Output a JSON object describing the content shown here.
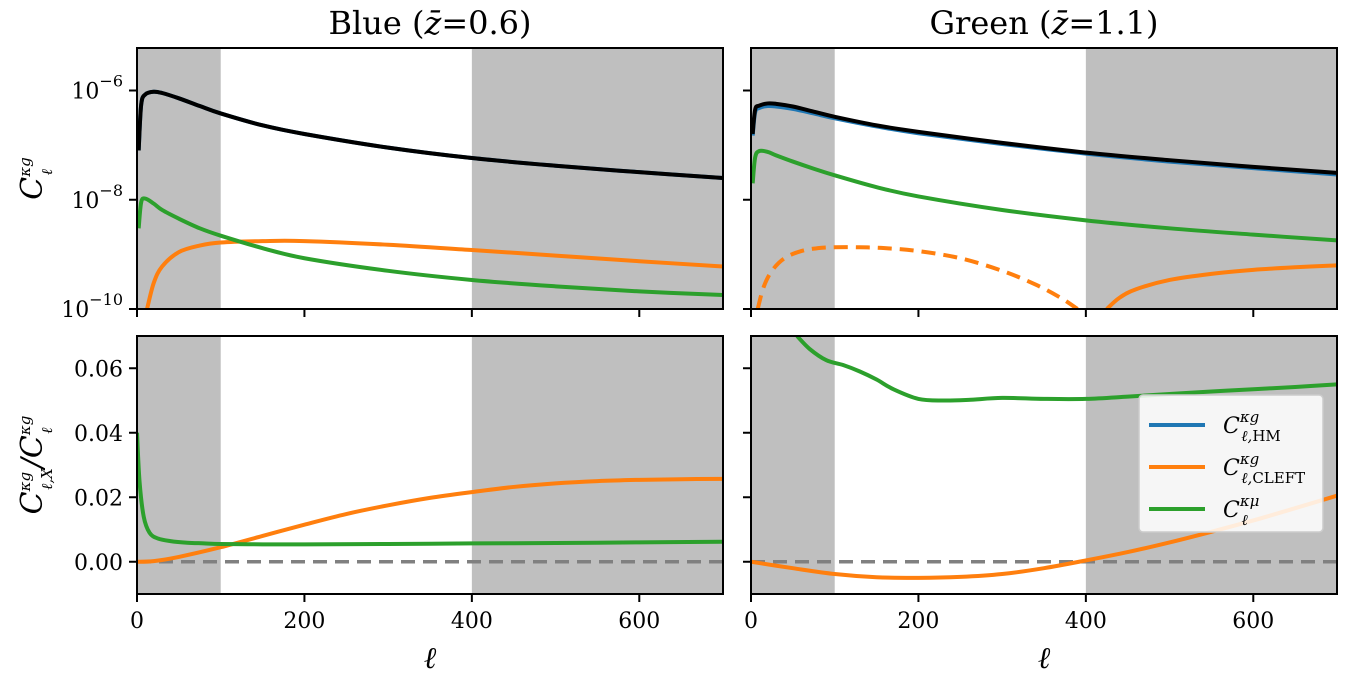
{
  "chart_data": [
    {
      "panel": "top-left",
      "type": "line",
      "title": "Blue (z̄=0.6)",
      "title_text": "Blue (",
      "title_math": "z̄",
      "title_eq": "=0.6)",
      "yscale": "log",
      "xlim": [
        0,
        700
      ],
      "ylim": [
        1e-10,
        6e-06
      ],
      "ylabel": "C_ℓ^κg",
      "yticks": [
        "10^-10",
        "10^-8",
        "10^-6"
      ],
      "shaded_x_ranges": [
        [
          0,
          100
        ],
        [
          400,
          700
        ]
      ],
      "series": [
        {
          "color": "#1f77b4",
          "x": [
            2,
            5,
            10,
            20,
            30,
            50,
            75,
            100,
            150,
            200,
            300,
            400,
            500,
            600,
            700
          ],
          "y": [
            8e-08,
            5.5e-07,
            8.5e-07,
            9.5e-07,
            9e-07,
            7.2e-07,
            5.2e-07,
            3.8e-07,
            2.3e-07,
            1.6e-07,
            9e-08,
            5.8e-08,
            4.2e-08,
            3.2e-08,
            2.5e-08
          ]
        },
        {
          "color": "#000000",
          "x": [
            2,
            5,
            10,
            20,
            30,
            50,
            75,
            100,
            150,
            200,
            300,
            400,
            500,
            600,
            700
          ],
          "y": [
            8e-08,
            5.5e-07,
            8.5e-07,
            9.5e-07,
            9e-07,
            7.2e-07,
            5.2e-07,
            3.8e-07,
            2.3e-07,
            1.6e-07,
            9e-08,
            5.8e-08,
            4.2e-08,
            3.2e-08,
            2.5e-08
          ]
        },
        {
          "color": "#ff7f0e",
          "dash": false,
          "x": [
            12,
            20,
            30,
            50,
            75,
            100,
            150,
            200,
            300,
            400,
            500,
            600,
            700
          ],
          "y": [
            1e-10,
            3e-10,
            6e-10,
            1.1e-09,
            1.45e-09,
            1.65e-09,
            1.75e-09,
            1.75e-09,
            1.5e-09,
            1.2e-09,
            9.5e-10,
            7.5e-10,
            6e-10
          ]
        },
        {
          "color": "#2ca02c",
          "x": [
            2,
            5,
            10,
            20,
            30,
            50,
            75,
            100,
            150,
            200,
            300,
            400,
            500,
            600,
            700
          ],
          "y": [
            3e-09,
            9e-09,
            1.05e-08,
            8.5e-09,
            6.5e-09,
            4.5e-09,
            3e-09,
            2.2e-09,
            1.3e-09,
            8.5e-10,
            5e-10,
            3.4e-10,
            2.6e-10,
            2.1e-10,
            1.8e-10
          ]
        }
      ]
    },
    {
      "panel": "top-right",
      "type": "line",
      "title": "Green (z̄=1.1)",
      "title_text": "Green (",
      "title_math": "z̄",
      "title_eq": "=1.1)",
      "yscale": "log",
      "xlim": [
        0,
        700
      ],
      "ylim": [
        1e-10,
        6e-06
      ],
      "shaded_x_ranges": [
        [
          0,
          100
        ],
        [
          400,
          700
        ]
      ],
      "series": [
        {
          "color": "#1f77b4",
          "x": [
            2,
            5,
            10,
            20,
            30,
            50,
            75,
            100,
            150,
            200,
            300,
            400,
            500,
            600,
            700
          ],
          "y": [
            1.5e-07,
            4e-07,
            4.8e-07,
            5.2e-07,
            5.1e-07,
            4.6e-07,
            3.8e-07,
            3.1e-07,
            2.2e-07,
            1.65e-07,
            1.05e-07,
            7e-08,
            5e-08,
            3.8e-08,
            2.9e-08
          ]
        },
        {
          "color": "#000000",
          "x": [
            2,
            5,
            10,
            20,
            30,
            50,
            75,
            100,
            150,
            200,
            300,
            400,
            500,
            600,
            700
          ],
          "y": [
            1.6e-07,
            4.5e-07,
            5.3e-07,
            5.8e-07,
            5.7e-07,
            5.1e-07,
            4.1e-07,
            3.3e-07,
            2.3e-07,
            1.75e-07,
            1.1e-07,
            7.3e-08,
            5.3e-08,
            4e-08,
            3.1e-08
          ]
        },
        {
          "color": "#ff7f0e",
          "dash": true,
          "x": [
            8,
            15,
            25,
            40,
            60,
            80,
            100,
            130,
            160,
            200,
            250,
            300,
            340,
            370,
            390
          ],
          "y": [
            1e-10,
            2.5e-10,
            5e-10,
            8.5e-10,
            1.15e-09,
            1.3e-09,
            1.35e-09,
            1.35e-09,
            1.3e-09,
            1.15e-09,
            8.5e-10,
            5e-10,
            2.8e-10,
            1.6e-10,
            1e-10
          ]
        },
        {
          "color": "#ff7f0e",
          "dash": false,
          "x": [
            425,
            440,
            460,
            500,
            550,
            600,
            650,
            700
          ],
          "y": [
            1e-10,
            1.6e-10,
            2.3e-10,
            3.4e-10,
            4.4e-10,
            5.2e-10,
            5.8e-10,
            6.3e-10
          ]
        },
        {
          "color": "#2ca02c",
          "x": [
            2,
            5,
            10,
            20,
            30,
            50,
            75,
            100,
            150,
            200,
            300,
            400,
            500,
            600,
            700
          ],
          "y": [
            2e-08,
            6e-08,
            7.8e-08,
            7.5e-08,
            6.5e-08,
            5e-08,
            3.7e-08,
            2.8e-08,
            1.7e-08,
            1.15e-08,
            6.5e-09,
            4.2e-09,
            3e-09,
            2.3e-09,
            1.8e-09
          ]
        }
      ]
    },
    {
      "panel": "bottom-left",
      "type": "line",
      "yscale": "linear",
      "xlim": [
        0,
        700
      ],
      "ylim": [
        -0.01,
        0.07
      ],
      "xlabel": "ℓ",
      "ylabel": "C_ℓ,X^κg / C_ℓ^κg",
      "yticks": [
        "0.00",
        "0.02",
        "0.04",
        "0.06"
      ],
      "ytick_values": [
        0,
        0.02,
        0.04,
        0.06
      ],
      "xticks": [
        "0",
        "200",
        "400",
        "600"
      ],
      "xtick_values": [
        0,
        200,
        400,
        600
      ],
      "shaded_x_ranges": [
        [
          0,
          100
        ],
        [
          400,
          700
        ]
      ],
      "hline": 0,
      "series": [
        {
          "color": "#ff7f0e",
          "x": [
            0,
            20,
            50,
            100,
            150,
            200,
            250,
            300,
            350,
            400,
            450,
            500,
            550,
            600,
            650,
            700
          ],
          "y": [
            0,
            0.0002,
            0.0015,
            0.0045,
            0.008,
            0.0115,
            0.0148,
            0.0175,
            0.0198,
            0.0216,
            0.0232,
            0.0243,
            0.025,
            0.0254,
            0.0256,
            0.0257
          ]
        },
        {
          "color": "#2ca02c",
          "x": [
            0,
            3,
            8,
            15,
            25,
            40,
            60,
            80,
            100,
            150,
            200,
            300,
            400,
            500,
            600,
            700
          ],
          "y": [
            0.04,
            0.025,
            0.014,
            0.009,
            0.0072,
            0.0064,
            0.0059,
            0.0057,
            0.0055,
            0.0054,
            0.0054,
            0.0055,
            0.0057,
            0.0058,
            0.006,
            0.0062
          ]
        }
      ]
    },
    {
      "panel": "bottom-right",
      "type": "line",
      "yscale": "linear",
      "xlim": [
        0,
        700
      ],
      "ylim": [
        -0.01,
        0.07
      ],
      "xlabel": "ℓ",
      "xticks": [
        "0",
        "200",
        "400",
        "600"
      ],
      "xtick_values": [
        0,
        200,
        400,
        600
      ],
      "shaded_x_ranges": [
        [
          0,
          100
        ],
        [
          400,
          700
        ]
      ],
      "hline": 0,
      "series": [
        {
          "color": "#ff7f0e",
          "x": [
            0,
            50,
            100,
            150,
            200,
            250,
            300,
            350,
            400,
            450,
            500,
            550,
            600,
            650,
            700
          ],
          "y": [
            0,
            -0.002,
            -0.0038,
            -0.0048,
            -0.005,
            -0.0047,
            -0.0038,
            -0.002,
            0.0004,
            0.003,
            0.006,
            0.0093,
            0.0128,
            0.0166,
            0.0205
          ]
        },
        {
          "color": "#2ca02c",
          "x": [
            55,
            70,
            90,
            110,
            130,
            150,
            170,
            200,
            230,
            260,
            300,
            350,
            400,
            450,
            500,
            550,
            600,
            650,
            700
          ],
          "y": [
            0.07,
            0.066,
            0.0625,
            0.061,
            0.059,
            0.0565,
            0.0535,
            0.0505,
            0.05,
            0.0502,
            0.0508,
            0.0505,
            0.0505,
            0.0512,
            0.052,
            0.0528,
            0.0535,
            0.0542,
            0.055
          ]
        }
      ],
      "legend": {
        "position": "center-right",
        "entries": [
          {
            "color": "#1f77b4",
            "label": "C_ℓ,HM^κg"
          },
          {
            "color": "#ff7f0e",
            "label": "C_ℓ,CLEFT^κg"
          },
          {
            "color": "#2ca02c",
            "label": "C_ℓ^κμ"
          }
        ]
      }
    }
  ]
}
